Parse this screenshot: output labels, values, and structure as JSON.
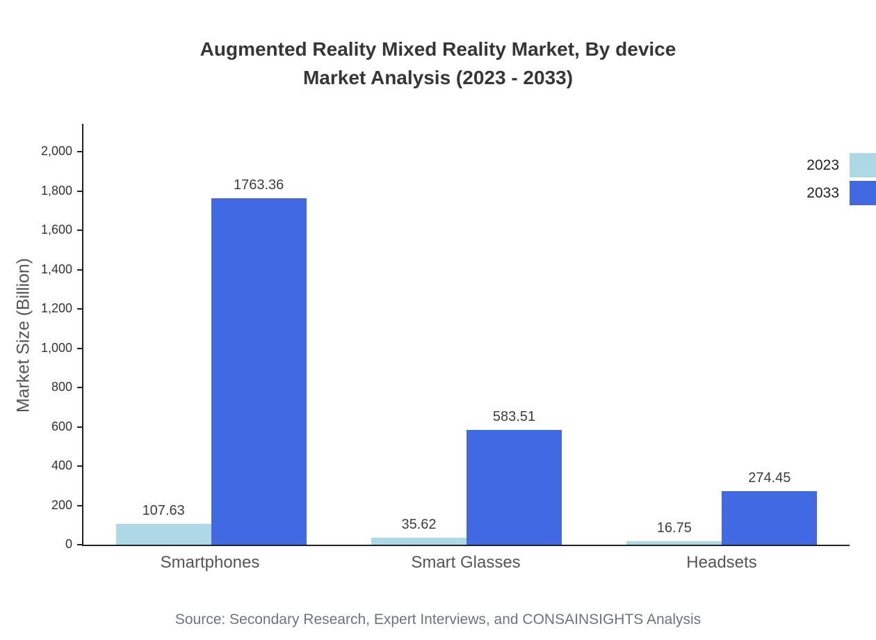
{
  "title": {
    "line1": "Augmented Reality Mixed Reality Market, By device",
    "line2": "Market Analysis (2023 - 2033)"
  },
  "chart_data": {
    "type": "bar",
    "categories": [
      "Smartphones",
      "Smart Glasses",
      "Headsets"
    ],
    "series": [
      {
        "name": "2023",
        "color": "#add8e6",
        "values": [
          107.63,
          35.62,
          16.75
        ]
      },
      {
        "name": "2033",
        "color": "#4169e1",
        "values": [
          1763.36,
          583.51,
          274.45
        ]
      }
    ],
    "value_labels": [
      [
        "107.63",
        "35.62",
        "16.75"
      ],
      [
        "1763.36",
        "583.51",
        "274.45"
      ]
    ],
    "title": "Augmented Reality Mixed Reality Market, By device Market Analysis (2023 - 2033)",
    "xlabel": "",
    "ylabel": "Market Size (Billion)",
    "ylim": [
      0,
      2000
    ],
    "ytick_step": 200,
    "grid": false,
    "legend_position": "top-right"
  },
  "source": "Source: Secondary Research, Expert Interviews, and CONSAINSIGHTS Analysis"
}
